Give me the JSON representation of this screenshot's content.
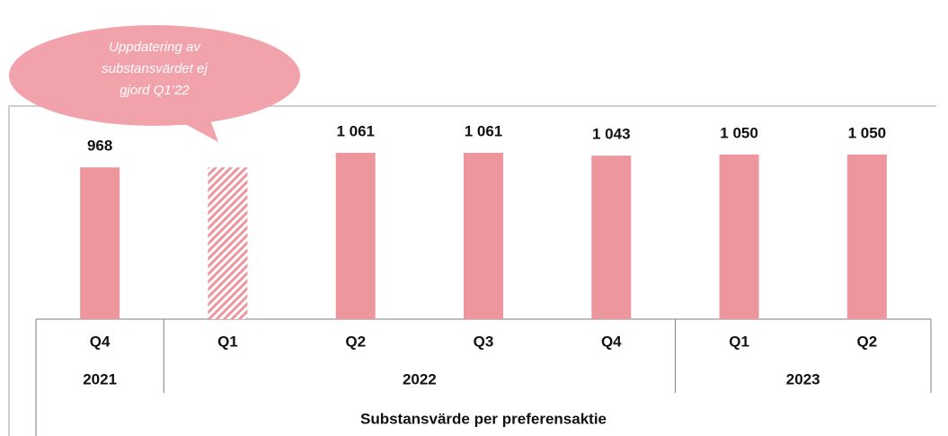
{
  "chart_data": {
    "type": "bar",
    "categories": [
      "Q4",
      "Q1",
      "Q2",
      "Q3",
      "Q4",
      "Q1",
      "Q2"
    ],
    "years": [
      "2021",
      "2022",
      null,
      null,
      null,
      "2023",
      null
    ],
    "values": [
      968,
      968,
      1061,
      1061,
      1043,
      1050,
      1050
    ],
    "value_labels": [
      "968",
      null,
      "1 061",
      "1 061",
      "1 043",
      "1 050",
      "1 050"
    ],
    "hatch": [
      false,
      true,
      false,
      false,
      false,
      false,
      false
    ],
    "color": "#ee969e",
    "x_label": "Substansvärde per preferensaktie",
    "annotation": [
      "Uppdatering av",
      "substansvärdet ej",
      "gjord  Q1’22"
    ]
  }
}
